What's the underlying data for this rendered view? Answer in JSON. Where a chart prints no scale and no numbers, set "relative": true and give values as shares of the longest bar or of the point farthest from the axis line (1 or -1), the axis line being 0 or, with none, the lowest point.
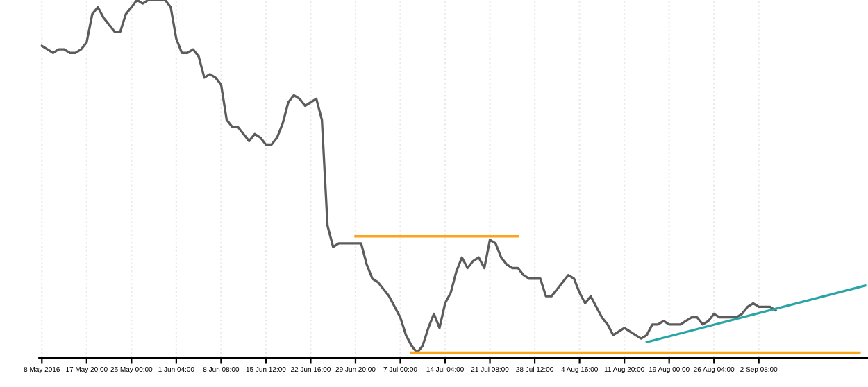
{
  "chart_data": {
    "type": "line",
    "relative": true,
    "grid": "x",
    "legend": false,
    "categories": [
      "8 May 2016",
      null,
      null,
      null,
      null,
      null,
      null,
      null,
      "17 May 20:00",
      null,
      null,
      null,
      null,
      null,
      null,
      null,
      "25 May 00:00",
      null,
      null,
      null,
      null,
      null,
      null,
      null,
      "1 Jun 04:00",
      null,
      null,
      null,
      null,
      null,
      null,
      null,
      "8 Jun 08:00",
      null,
      null,
      null,
      null,
      null,
      null,
      null,
      "15 Jun 12:00",
      null,
      null,
      null,
      null,
      null,
      null,
      null,
      "22 Jun 16:00",
      null,
      null,
      null,
      null,
      null,
      null,
      null,
      "29 Jun 20:00",
      null,
      null,
      null,
      null,
      null,
      null,
      null,
      "7 Jul 00:00",
      null,
      null,
      null,
      null,
      null,
      null,
      null,
      "14 Jul 04:00",
      null,
      null,
      null,
      null,
      null,
      null,
      null,
      "21 Jul 08:00",
      null,
      null,
      null,
      null,
      null,
      null,
      null,
      "28 Jul 12:00",
      null,
      null,
      null,
      null,
      null,
      null,
      null,
      "4 Aug 16:00",
      null,
      null,
      null,
      null,
      null,
      null,
      null,
      "11 Aug 20:00",
      null,
      null,
      null,
      null,
      null,
      null,
      null,
      "19 Aug 00:00",
      null,
      null,
      null,
      null,
      null,
      null,
      null,
      "26 Aug 04:00",
      null,
      null,
      null,
      null,
      null,
      null,
      null,
      "2 Sep 08:00",
      null,
      null,
      null,
      null,
      null,
      null,
      null,
      null,
      null,
      null,
      null,
      null,
      null,
      null,
      null,
      null,
      null,
      null,
      null
    ],
    "series": [
      {
        "color": "#5c5c5c",
        "values": [
          0.87,
          0.86,
          0.85,
          0.86,
          0.86,
          0.85,
          0.85,
          0.86,
          0.88,
          0.96,
          0.98,
          0.95,
          0.93,
          0.91,
          0.91,
          0.96,
          0.98,
          1,
          0.99,
          1,
          1,
          1,
          1,
          0.98,
          0.89,
          0.85,
          0.85,
          0.86,
          0.84,
          0.78,
          0.79,
          0.78,
          0.76,
          0.66,
          0.64,
          0.64,
          0.62,
          0.6,
          0.62,
          0.61,
          0.59,
          0.59,
          0.61,
          0.65,
          0.71,
          0.73,
          0.72,
          0.7,
          0.71,
          0.72,
          0.66,
          0.36,
          0.3,
          0.31,
          0.31,
          0.31,
          0.31,
          0.31,
          0.25,
          0.21,
          0.2,
          0.18,
          0.16,
          0.13,
          0.1,
          0.05,
          0.02,
          0,
          0.02,
          0.07,
          0.11,
          0.07,
          0.14,
          0.17,
          0.23,
          0.27,
          0.24,
          0.26,
          0.27,
          0.24,
          0.32,
          0.31,
          0.27,
          0.25,
          0.24,
          0.24,
          0.22,
          0.21,
          0.21,
          0.21,
          0.16,
          0.16,
          0.18,
          0.2,
          0.22,
          0.21,
          0.17,
          0.14,
          0.16,
          0.13,
          0.1,
          0.08,
          0.05,
          0.06,
          0.07,
          0.06,
          0.05,
          0.04,
          0.05,
          0.08,
          0.08,
          0.09,
          0.08,
          0.08,
          0.08,
          0.09,
          0.1,
          0.1,
          0.08,
          0.09,
          0.11,
          0.1,
          0.1,
          0.1,
          0.1,
          0.11,
          0.13,
          0.14,
          0.13,
          0.13,
          0.13,
          0.12,
          null,
          null,
          null,
          null,
          null,
          null,
          null,
          null,
          null,
          null,
          null,
          null,
          null,
          null,
          null,
          null
        ]
      },
      {
        "color": "#ffa31a",
        "values": [
          null,
          null,
          null,
          null,
          null,
          null,
          null,
          null,
          null,
          null,
          null,
          null,
          null,
          null,
          null,
          null,
          null,
          null,
          null,
          null,
          null,
          null,
          null,
          null,
          null,
          null,
          null,
          null,
          null,
          null,
          null,
          null,
          null,
          null,
          null,
          null,
          null,
          null,
          null,
          null,
          null,
          null,
          null,
          null,
          null,
          null,
          null,
          null,
          null,
          null,
          null,
          null,
          null,
          null,
          null,
          null,
          0.33,
          null,
          null,
          null,
          null,
          null,
          null,
          null,
          null,
          null,
          null,
          null,
          null,
          null,
          null,
          null,
          null,
          null,
          null,
          null,
          null,
          null,
          null,
          null,
          null,
          null,
          null,
          null,
          null,
          0.33,
          null,
          null,
          null,
          null,
          null,
          null,
          null,
          null,
          null,
          null,
          null,
          null,
          null,
          null,
          null,
          null,
          null,
          null,
          null,
          null,
          null,
          null,
          null,
          null,
          null,
          null,
          null,
          null,
          null,
          null,
          null,
          null,
          null,
          null,
          null,
          null,
          null,
          null,
          null,
          null,
          null,
          null,
          null,
          null,
          null,
          null,
          null,
          null,
          null,
          null,
          null,
          null,
          null,
          null,
          null,
          null,
          null,
          null,
          null,
          null,
          null,
          null
        ]
      },
      {
        "color": "#ffa31a",
        "values": [
          null,
          null,
          null,
          null,
          null,
          null,
          null,
          null,
          null,
          null,
          null,
          null,
          null,
          null,
          null,
          null,
          null,
          null,
          null,
          null,
          null,
          null,
          null,
          null,
          null,
          null,
          null,
          null,
          null,
          null,
          null,
          null,
          null,
          null,
          null,
          null,
          null,
          null,
          null,
          null,
          null,
          null,
          null,
          null,
          null,
          null,
          null,
          null,
          null,
          null,
          null,
          null,
          null,
          null,
          null,
          null,
          null,
          null,
          null,
          null,
          null,
          null,
          null,
          null,
          null,
          null,
          0,
          null,
          null,
          null,
          null,
          null,
          null,
          null,
          null,
          null,
          null,
          null,
          null,
          null,
          null,
          null,
          null,
          null,
          null,
          null,
          null,
          null,
          null,
          null,
          null,
          null,
          null,
          null,
          null,
          null,
          null,
          null,
          null,
          null,
          null,
          null,
          null,
          null,
          null,
          null,
          null,
          null,
          null,
          null,
          null,
          null,
          null,
          null,
          null,
          null,
          null,
          null,
          null,
          null,
          null,
          null,
          null,
          null,
          null,
          null,
          null,
          null,
          null,
          null,
          null,
          null,
          null,
          null,
          null,
          null,
          null,
          null,
          null,
          null,
          null,
          null,
          null,
          null,
          null,
          null,
          0,
          null
        ]
      },
      {
        "color": "#2aa5a5",
        "values": [
          null,
          null,
          null,
          null,
          null,
          null,
          null,
          null,
          null,
          null,
          null,
          null,
          null,
          null,
          null,
          null,
          null,
          null,
          null,
          null,
          null,
          null,
          null,
          null,
          null,
          null,
          null,
          null,
          null,
          null,
          null,
          null,
          null,
          null,
          null,
          null,
          null,
          null,
          null,
          null,
          null,
          null,
          null,
          null,
          null,
          null,
          null,
          null,
          null,
          null,
          null,
          null,
          null,
          null,
          null,
          null,
          null,
          null,
          null,
          null,
          null,
          null,
          null,
          null,
          null,
          null,
          null,
          null,
          null,
          null,
          null,
          null,
          null,
          null,
          null,
          null,
          null,
          null,
          null,
          null,
          null,
          null,
          null,
          null,
          null,
          null,
          null,
          null,
          null,
          null,
          null,
          null,
          null,
          null,
          null,
          null,
          null,
          null,
          null,
          null,
          null,
          null,
          null,
          null,
          null,
          null,
          null,
          null,
          0.03,
          null,
          null,
          null,
          null,
          null,
          null,
          null,
          null,
          null,
          null,
          null,
          null,
          null,
          null,
          null,
          null,
          null,
          null,
          null,
          null,
          null,
          null,
          null,
          null,
          null,
          null,
          null,
          null,
          null,
          null,
          null,
          null,
          null,
          null,
          null,
          null,
          null,
          null,
          0.19
        ]
      }
    ]
  }
}
